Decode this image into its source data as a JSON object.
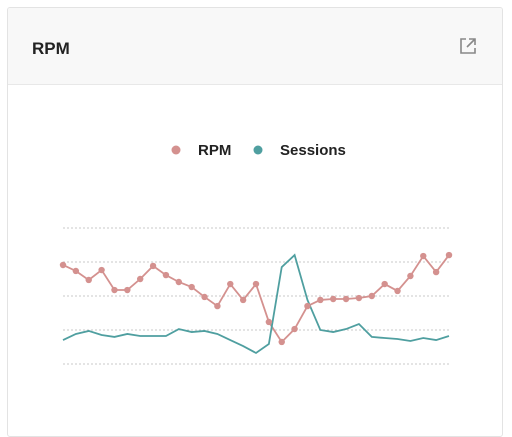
{
  "header": {
    "title": "RPM"
  },
  "chart_data": {
    "type": "line",
    "categories": [
      null,
      null,
      null,
      null,
      null,
      null,
      null,
      null,
      null,
      null,
      null,
      null,
      null,
      null,
      null,
      null,
      null,
      null,
      null,
      null,
      null,
      null,
      null,
      null,
      null,
      null,
      null,
      null,
      null,
      null,
      null
    ],
    "series": [
      {
        "name": "RPM",
        "color": "#d4918f",
        "markers": true,
        "values": [
          72.8,
          68.4,
          61.8,
          69.1,
          54.4,
          54.4,
          62.5,
          72.1,
          65.4,
          60.3,
          56.6,
          49.3,
          42.6,
          58.8,
          47.1,
          58.8,
          30.9,
          16.2,
          25.7,
          42.6,
          47.1,
          47.8,
          47.8,
          48.5,
          50.0,
          58.8,
          53.7,
          64.7,
          79.4,
          67.6,
          80.1
        ]
      },
      {
        "name": "Sessions",
        "color": "#4f9fa0",
        "markers": false,
        "values": [
          17.6,
          22.1,
          24.3,
          21.3,
          19.9,
          22.1,
          20.6,
          20.6,
          20.6,
          25.7,
          23.5,
          24.3,
          22.1,
          17.6,
          13.2,
          8.1,
          14.7,
          71.3,
          80.1,
          47.1,
          25.0,
          23.5,
          25.7,
          29.4,
          19.9,
          19.1,
          18.4,
          16.9,
          19.1,
          17.6,
          20.6
        ]
      }
    ],
    "ylim": [
      0,
      100
    ],
    "yticks": [
      0,
      25,
      50,
      75,
      100
    ],
    "grid": true,
    "legend": "top"
  }
}
